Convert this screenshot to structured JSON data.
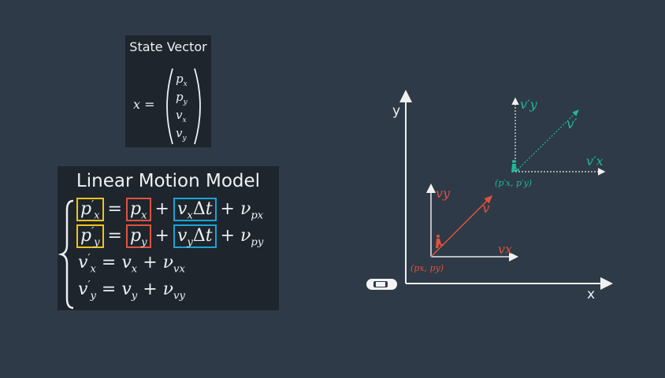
{
  "colors": {
    "background": "#2e3a47",
    "panel": "#1e252d",
    "red": "#e0533d",
    "teal": "#1fb89a",
    "yellow": "#f2c318",
    "blue": "#1aa3d6"
  },
  "state_vector": {
    "title": "State Vector",
    "lhs": "x =",
    "entries": [
      [
        "p",
        "x"
      ],
      [
        "p",
        "y"
      ],
      [
        "v",
        "x"
      ],
      [
        "v",
        "y"
      ]
    ]
  },
  "motion_model": {
    "title": "Linear Motion Model",
    "rows": [
      [
        {
          "t": "p",
          "sub": "x",
          "sup": "′",
          "box": "yellow"
        },
        {
          "t": "="
        },
        {
          "t": "p",
          "sub": "x",
          "box": "red"
        },
        {
          "t": "+"
        },
        {
          "t": "v",
          "sub": "x",
          "after": "Δt",
          "box": "blue"
        },
        {
          "t": "+"
        },
        {
          "t": "ν",
          "sub": "px"
        }
      ],
      [
        {
          "t": "p",
          "sub": "y",
          "sup": "′",
          "box": "yellow"
        },
        {
          "t": "="
        },
        {
          "t": "p",
          "sub": "y",
          "box": "red"
        },
        {
          "t": "+"
        },
        {
          "t": "v",
          "sub": "y",
          "after": "Δt",
          "box": "blue"
        },
        {
          "t": "+"
        },
        {
          "t": "ν",
          "sub": "py"
        }
      ],
      [
        {
          "t": "v",
          "sub": "x",
          "sup": "′"
        },
        {
          "t": "="
        },
        {
          "t": "v",
          "sub": "x"
        },
        {
          "t": "+"
        },
        {
          "t": "ν",
          "sub": "vx"
        }
      ],
      [
        {
          "t": "v",
          "sub": "y",
          "sup": "′"
        },
        {
          "t": "="
        },
        {
          "t": "v",
          "sub": "y"
        },
        {
          "t": "+"
        },
        {
          "t": "ν",
          "sub": "vy"
        }
      ]
    ]
  },
  "diagram": {
    "axis_x": "x",
    "axis_y": "y",
    "current": {
      "vy": "vy",
      "v": "v",
      "vx": "vx",
      "pos": "(px, py)"
    },
    "predicted": {
      "vy": "v′y",
      "v": "v′",
      "vx": "v′x",
      "pos": "(p′x, p′y)"
    },
    "icons": [
      "car-icon",
      "pedestrian-icon"
    ]
  }
}
